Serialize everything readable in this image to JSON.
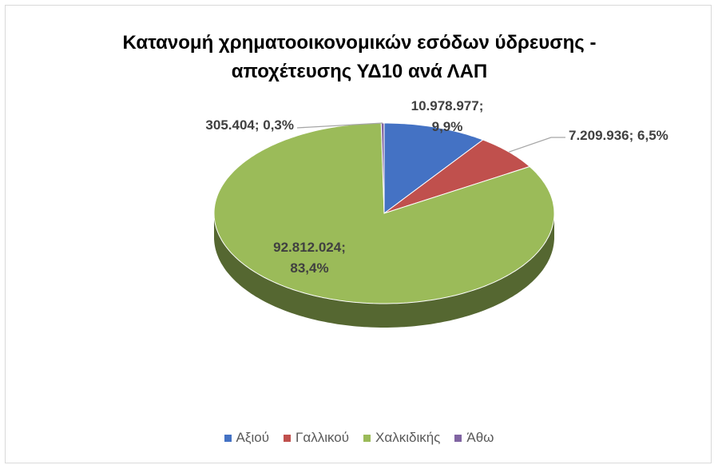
{
  "chart_data": {
    "type": "pie3d",
    "title": "Κατανομή χρηματοοικονομικών εσόδων ύδρευσης - αποχέτευσης ΥΔ10 ανά ΛΑΠ",
    "categories": [
      "Αξιού",
      "Γαλλικού",
      "Χαλκιδικής",
      "Άθω"
    ],
    "values": [
      10978977,
      7209936,
      92812024,
      305404
    ],
    "value_labels": [
      "10.978.977; 9,9%",
      "7.209.936; 6,5%",
      "92.812.024; 83,4%",
      "305.404; 0,3%"
    ],
    "colors": [
      "#4472c4",
      "#c0504d",
      "#9bbb59",
      "#8064a2"
    ],
    "legend": "bottom"
  }
}
